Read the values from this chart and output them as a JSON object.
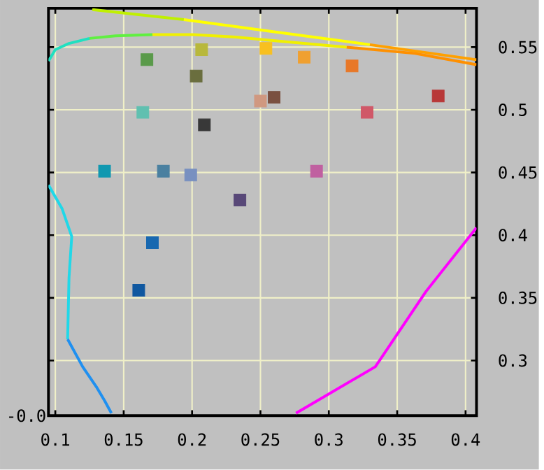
{
  "chart_data": {
    "type": "scatter",
    "xlim": [
      0.095,
      0.408
    ],
    "ylim": [
      0.256,
      0.581
    ],
    "xticks": [
      0.1,
      0.15,
      0.2,
      0.25,
      0.3,
      0.35,
      0.4
    ],
    "yticks": [
      0.3,
      0.35,
      0.4,
      0.45,
      0.5,
      0.55
    ],
    "grid": true,
    "annotations": [
      "-0.0"
    ],
    "series": [
      {
        "marker": "square",
        "x": [
          0.167,
          0.207,
          0.203,
          0.254,
          0.282,
          0.317,
          0.25,
          0.26,
          0.38,
          0.328,
          0.164,
          0.209,
          0.136,
          0.179,
          0.199,
          0.291,
          0.235,
          0.171,
          0.161
        ],
        "values": [
          0.54,
          0.548,
          0.527,
          0.549,
          0.542,
          0.535,
          0.507,
          0.51,
          0.511,
          0.498,
          0.498,
          0.488,
          0.451,
          0.451,
          0.448,
          0.451,
          0.428,
          0.394,
          0.356
        ],
        "colors": [
          "#5a9a4a",
          "#b8b83c",
          "#6a6e3e",
          "#f8c020",
          "#f0a030",
          "#e87828",
          "#d09880",
          "#7a5040",
          "#b83838",
          "#d05868",
          "#60c0b0",
          "#383838",
          "#1098b0",
          "#4a80a0",
          "#7890c0",
          "#c060a0",
          "#584878",
          "#1868b0",
          "#1058a0"
        ]
      },
      {
        "type": "line",
        "color": "#c0f000",
        "x": [
          0.127,
          0.194
        ],
        "values": [
          0.58,
          0.572
        ]
      },
      {
        "type": "line",
        "color": "#ffff00",
        "x": [
          0.194,
          0.262,
          0.33
        ],
        "values": [
          0.572,
          0.562,
          0.552
        ]
      },
      {
        "type": "line",
        "color": "#ffa000",
        "x": [
          0.33,
          0.408
        ],
        "values": [
          0.552,
          0.54
        ]
      },
      {
        "type": "line",
        "color": "#20e0c0",
        "x": [
          0.095,
          0.1,
          0.11,
          0.125
        ],
        "values": [
          0.539,
          0.548,
          0.553,
          0.557
        ]
      },
      {
        "type": "line",
        "color": "#60f040",
        "x": [
          0.125,
          0.144,
          0.171
        ],
        "values": [
          0.557,
          0.559,
          0.56
        ]
      },
      {
        "type": "line",
        "color": "#f0f000",
        "x": [
          0.171,
          0.201,
          0.232,
          0.262,
          0.313
        ],
        "values": [
          0.56,
          0.56,
          0.558,
          0.555,
          0.55
        ]
      },
      {
        "type": "line",
        "color": "#ff9000",
        "x": [
          0.313,
          0.363,
          0.408
        ],
        "values": [
          0.55,
          0.545,
          0.536
        ]
      },
      {
        "type": "line",
        "color": "#20d8e8",
        "x": [
          0.095,
          0.105,
          0.112,
          0.11,
          0.109
        ],
        "values": [
          0.44,
          0.421,
          0.399,
          0.366,
          0.317
        ]
      },
      {
        "type": "line",
        "color": "#2090f0",
        "x": [
          0.109,
          0.12,
          0.13,
          0.136,
          0.141
        ],
        "values": [
          0.317,
          0.295,
          0.279,
          0.268,
          0.258
        ]
      },
      {
        "type": "line",
        "color": "#ff00ff",
        "x": [
          0.276,
          0.334,
          0.371,
          0.408
        ],
        "values": [
          0.258,
          0.295,
          0.355,
          0.406
        ]
      }
    ]
  }
}
